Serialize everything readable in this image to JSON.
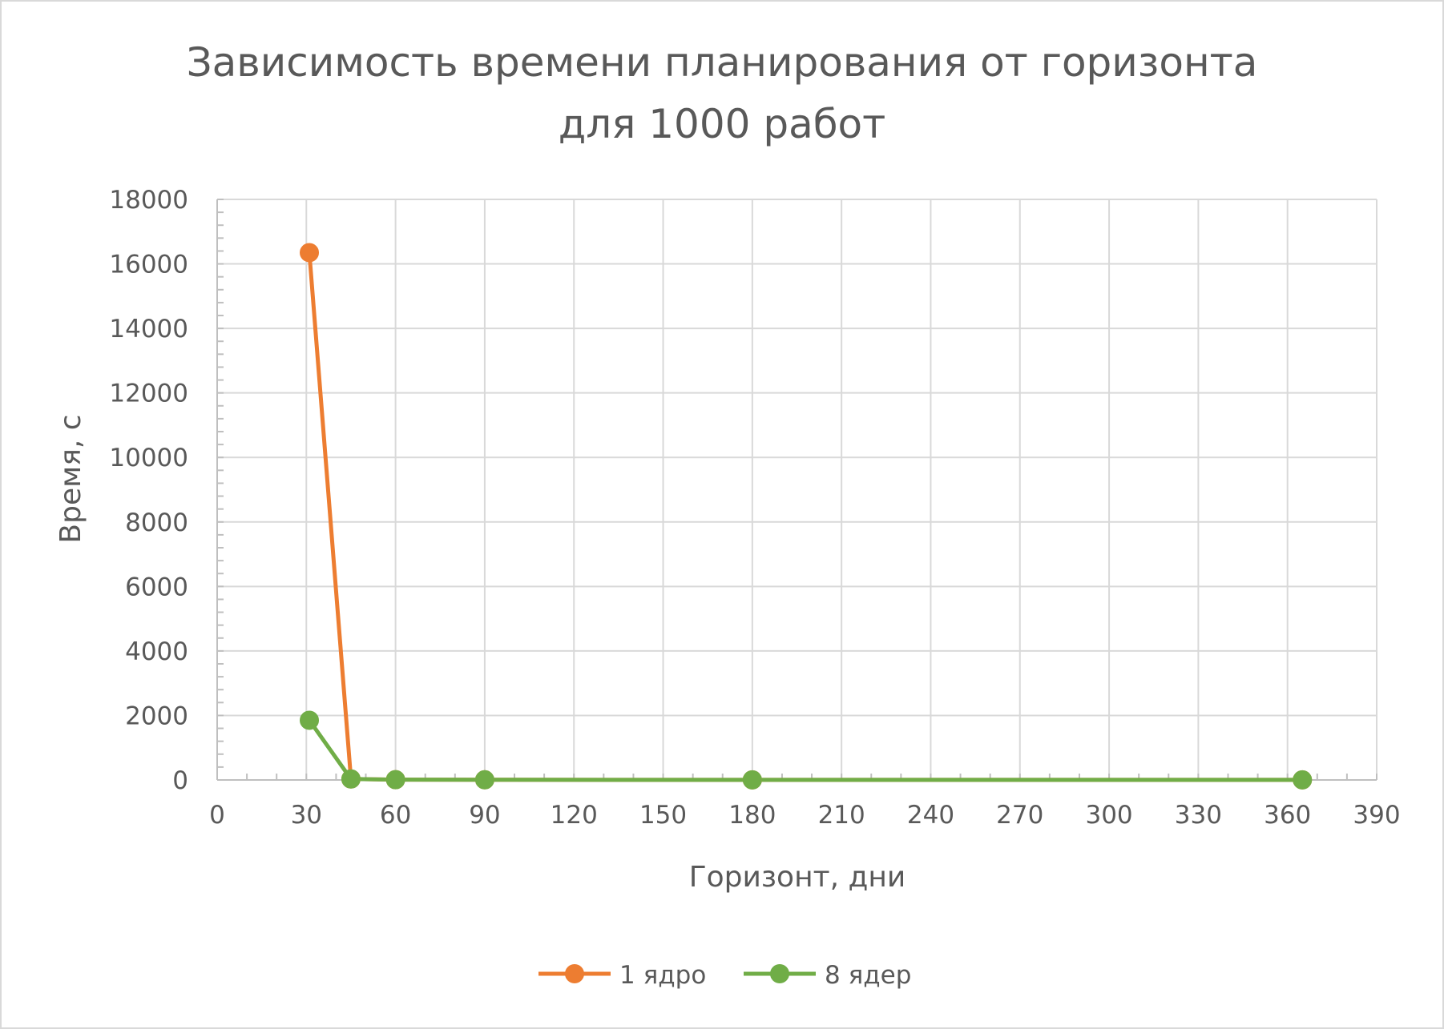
{
  "chart_data": {
    "type": "scatter",
    "title_lines": [
      "Зависимость времени планирования от горизонта",
      "для 1000 работ"
    ],
    "xlabel": "Горизонт, дни",
    "ylabel": "Время, с",
    "xlim": [
      0,
      390
    ],
    "ylim": [
      0,
      18000
    ],
    "x_ticks": [
      0,
      30,
      60,
      90,
      120,
      150,
      180,
      210,
      240,
      270,
      300,
      330,
      360,
      390
    ],
    "y_ticks": [
      0,
      2000,
      4000,
      6000,
      8000,
      10000,
      12000,
      14000,
      16000,
      18000
    ],
    "x_tick_labels": [
      "0",
      "30",
      "60",
      "90",
      "120",
      "150",
      "180",
      "210",
      "240",
      "270",
      "300",
      "330",
      "360",
      "390"
    ],
    "y_tick_labels": [
      "0",
      "2000",
      "4000",
      "6000",
      "8000",
      "10000",
      "12000",
      "14000",
      "16000",
      "18000"
    ],
    "grid": true,
    "legend_position": "bottom",
    "series": [
      {
        "name": "1 ядро",
        "color": "#ED7D31",
        "points": [
          [
            31,
            16350
          ],
          [
            45,
            30
          ],
          [
            60,
            10
          ],
          [
            90,
            5
          ],
          [
            180,
            3
          ],
          [
            365,
            2
          ]
        ]
      },
      {
        "name": "8 ядер",
        "color": "#70AD47",
        "points": [
          [
            31,
            1850
          ],
          [
            45,
            30
          ],
          [
            60,
            10
          ],
          [
            90,
            5
          ],
          [
            180,
            3
          ],
          [
            365,
            2
          ]
        ]
      }
    ]
  }
}
